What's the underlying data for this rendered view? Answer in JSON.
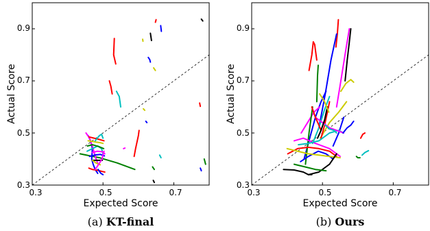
{
  "chart_data": [
    {
      "type": "line",
      "caption_prefix": "(a)",
      "caption_name": "KT-final",
      "xlabel": "Expected Score",
      "ylabel": "Actual Score",
      "xlim": [
        0.3,
        0.8
      ],
      "ylim": [
        0.3,
        1.0
      ],
      "xticks": [
        "0.3",
        "0.5",
        "0.7"
      ],
      "yticks": [
        "0.3",
        "0.5",
        "0.7",
        "0.9"
      ],
      "reference_line": "y = x (dashed)",
      "series": [
        {
          "color": "#ff0000",
          "x": [
            0.532,
            0.53,
            0.536
          ],
          "y": [
            0.863,
            0.8,
            0.765
          ]
        },
        {
          "color": "#000000",
          "x": [
            0.634,
            0.637
          ],
          "y": [
            0.883,
            0.855
          ]
        },
        {
          "color": "#ff0000",
          "x": [
            0.65,
            0.648
          ],
          "y": [
            0.935,
            0.925
          ]
        },
        {
          "color": "#0000ff",
          "x": [
            0.663,
            0.665
          ],
          "y": [
            0.912,
            0.89
          ]
        },
        {
          "color": "#000000",
          "x": [
            0.778,
            0.782
          ],
          "y": [
            0.937,
            0.93
          ]
        },
        {
          "color": "#cccc00",
          "x": [
            0.612,
            0.613
          ],
          "y": [
            0.86,
            0.852
          ]
        },
        {
          "color": "#0000ff",
          "x": [
            0.628,
            0.632,
            0.634
          ],
          "y": [
            0.79,
            0.782,
            0.772
          ]
        },
        {
          "color": "#cccc00",
          "x": [
            0.643,
            0.648
          ],
          "y": [
            0.75,
            0.74
          ]
        },
        {
          "color": "#00bfbf",
          "x": [
            0.538,
            0.546,
            0.55
          ],
          "y": [
            0.66,
            0.64,
            0.6
          ]
        },
        {
          "color": "#ff0000",
          "x": [
            0.518,
            0.522,
            0.526
          ],
          "y": [
            0.7,
            0.68,
            0.65
          ]
        },
        {
          "color": "#cccc00",
          "x": [
            0.614,
            0.618
          ],
          "y": [
            0.593,
            0.587
          ]
        },
        {
          "color": "#0000ff",
          "x": [
            0.621,
            0.624
          ],
          "y": [
            0.545,
            0.54
          ]
        },
        {
          "color": "#ff0000",
          "x": [
            0.588,
            0.592,
            0.6,
            0.602
          ],
          "y": [
            0.41,
            0.44,
            0.49,
            0.51
          ]
        },
        {
          "color": "#ff00ff",
          "x": [
            0.558,
            0.562
          ],
          "y": [
            0.44,
            0.442
          ]
        },
        {
          "color": "#00bfbf",
          "x": [
            0.66,
            0.664
          ],
          "y": [
            0.415,
            0.405
          ]
        },
        {
          "color": "#008000",
          "x": [
            0.64,
            0.645
          ],
          "y": [
            0.37,
            0.36
          ]
        },
        {
          "color": "#000000",
          "x": [
            0.642,
            0.645
          ],
          "y": [
            0.318,
            0.31
          ]
        },
        {
          "color": "#ff0000",
          "x": [
            0.773,
            0.775
          ],
          "y": [
            0.615,
            0.602
          ]
        },
        {
          "color": "#0000ff",
          "x": [
            0.775,
            0.778
          ],
          "y": [
            0.365,
            0.355
          ]
        },
        {
          "color": "#008000",
          "x": [
            0.786,
            0.79
          ],
          "y": [
            0.4,
            0.38
          ]
        },
        {
          "color": "#008000",
          "x": [
            0.435,
            0.49,
            0.54,
            0.59
          ],
          "y": [
            0.42,
            0.405,
            0.385,
            0.36
          ]
        },
        {
          "color": "#0000ff",
          "x": [
            0.458,
            0.465,
            0.47,
            0.468,
            0.472,
            0.478,
            0.485
          ],
          "y": [
            0.49,
            0.47,
            0.44,
            0.4,
            0.38,
            0.36,
            0.345
          ]
        },
        {
          "color": "#ff0000",
          "x": [
            0.46,
            0.47,
            0.48,
            0.49,
            0.498,
            0.505
          ],
          "y": [
            0.365,
            0.36,
            0.358,
            0.355,
            0.352,
            0.35
          ]
        },
        {
          "color": "#ff00ff",
          "x": [
            0.452,
            0.462,
            0.47,
            0.478,
            0.486
          ],
          "y": [
            0.5,
            0.48,
            0.45,
            0.41,
            0.38
          ]
        },
        {
          "color": "#00bfbf",
          "x": [
            0.455,
            0.47,
            0.485,
            0.496,
            0.5
          ],
          "y": [
            0.43,
            0.44,
            0.45,
            0.44,
            0.42
          ]
        },
        {
          "color": "#cccc00",
          "x": [
            0.458,
            0.468,
            0.48,
            0.492,
            0.5
          ],
          "y": [
            0.47,
            0.468,
            0.465,
            0.463,
            0.46
          ]
        },
        {
          "color": "#008000",
          "x": [
            0.456,
            0.47,
            0.488,
            0.502
          ],
          "y": [
            0.45,
            0.455,
            0.448,
            0.44
          ]
        },
        {
          "color": "#ff0000",
          "x": [
            0.46,
            0.475,
            0.49,
            0.503
          ],
          "y": [
            0.485,
            0.48,
            0.475,
            0.47
          ]
        },
        {
          "color": "#0000ff",
          "x": [
            0.462,
            0.476,
            0.492,
            0.504
          ],
          "y": [
            0.41,
            0.415,
            0.418,
            0.412
          ]
        },
        {
          "color": "#ff00ff",
          "x": [
            0.47,
            0.484,
            0.498,
            0.505
          ],
          "y": [
            0.425,
            0.43,
            0.428,
            0.42
          ]
        },
        {
          "color": "#000000",
          "x": [
            0.47,
            0.484,
            0.498
          ],
          "y": [
            0.395,
            0.395,
            0.395
          ]
        },
        {
          "color": "#00bfbf",
          "x": [
            0.478,
            0.49,
            0.496,
            0.5
          ],
          "y": [
            0.47,
            0.49,
            0.495,
            0.48
          ]
        },
        {
          "color": "#cccc00",
          "x": [
            0.47,
            0.48,
            0.492
          ],
          "y": [
            0.395,
            0.385,
            0.378
          ]
        },
        {
          "color": "#ff00ff",
          "x": [
            0.478,
            0.488,
            0.497,
            0.503
          ],
          "y": [
            0.36,
            0.38,
            0.4,
            0.43
          ]
        },
        {
          "color": "#0000ff",
          "x": [
            0.486,
            0.494,
            0.5
          ],
          "y": [
            0.36,
            0.345,
            0.34
          ]
        }
      ]
    },
    {
      "type": "line",
      "caption_prefix": "(b)",
      "caption_name": "Ours",
      "xlabel": "Expected Score",
      "ylabel": "Actual Score",
      "xlim": [
        0.3,
        0.8
      ],
      "ylim": [
        0.3,
        1.0
      ],
      "xticks": [
        "0.3",
        "0.5",
        "0.7"
      ],
      "yticks": [
        "0.3",
        "0.5",
        "0.7",
        "0.9"
      ],
      "reference_line": "y = x (dashed)",
      "series": [
        {
          "color": "#ff0000",
          "x": [
            0.462,
            0.47,
            0.474,
            0.478,
            0.484
          ],
          "y": [
            0.74,
            0.8,
            0.85,
            0.84,
            0.78
          ]
        },
        {
          "color": "#ff0000",
          "x": [
            0.538,
            0.542,
            0.545
          ],
          "y": [
            0.83,
            0.88,
            0.935
          ]
        },
        {
          "color": "#000000",
          "x": [
            0.564,
            0.57,
            0.576,
            0.58
          ],
          "y": [
            0.7,
            0.78,
            0.85,
            0.9
          ]
        },
        {
          "color": "#ff00ff",
          "x": [
            0.54,
            0.552,
            0.566,
            0.576
          ],
          "y": [
            0.6,
            0.7,
            0.82,
            0.9
          ]
        },
        {
          "color": "#0000ff",
          "x": [
            0.49,
            0.508,
            0.524,
            0.54
          ],
          "y": [
            0.52,
            0.65,
            0.78,
            0.88
          ]
        },
        {
          "color": "#008000",
          "x": [
            0.484,
            0.486,
            0.488
          ],
          "y": [
            0.62,
            0.72,
            0.76
          ]
        },
        {
          "color": "#cccc00",
          "x": [
            0.552,
            0.566,
            0.58,
            0.588
          ],
          "y": [
            0.66,
            0.69,
            0.705,
            0.695
          ]
        },
        {
          "color": "#0000ff",
          "x": [
            0.448,
            0.464,
            0.48,
            0.496,
            0.51
          ],
          "y": [
            0.4,
            0.48,
            0.56,
            0.62,
            0.66
          ]
        },
        {
          "color": "#00bfbf",
          "x": [
            0.472,
            0.49,
            0.506,
            0.52
          ],
          "y": [
            0.46,
            0.52,
            0.59,
            0.64
          ]
        },
        {
          "color": "#ff00ff",
          "x": [
            0.44,
            0.458,
            0.476,
            0.492
          ],
          "y": [
            0.5,
            0.54,
            0.58,
            0.6
          ]
        },
        {
          "color": "#008000",
          "x": [
            0.452,
            0.462,
            0.472
          ],
          "y": [
            0.38,
            0.5,
            0.6
          ]
        },
        {
          "color": "#cccc00",
          "x": [
            0.494,
            0.52,
            0.546,
            0.568
          ],
          "y": [
            0.48,
            0.54,
            0.58,
            0.62
          ]
        },
        {
          "color": "#ff0000",
          "x": [
            0.496,
            0.506,
            0.514,
            0.52
          ],
          "y": [
            0.48,
            0.53,
            0.58,
            0.62
          ]
        },
        {
          "color": "#0000ff",
          "x": [
            0.53,
            0.546,
            0.56
          ],
          "y": [
            0.45,
            0.5,
            0.56
          ]
        },
        {
          "color": "#ff0000",
          "x": [
            0.402,
            0.43,
            0.46,
            0.49,
            0.52,
            0.54
          ],
          "y": [
            0.42,
            0.44,
            0.445,
            0.44,
            0.43,
            0.41
          ]
        },
        {
          "color": "#ff00ff",
          "x": [
            0.42,
            0.446,
            0.48,
            0.52,
            0.55
          ],
          "y": [
            0.47,
            0.48,
            0.46,
            0.44,
            0.41
          ]
        },
        {
          "color": "#00bfbf",
          "x": [
            0.432,
            0.46,
            0.49,
            0.52,
            0.546,
            0.56
          ],
          "y": [
            0.455,
            0.46,
            0.47,
            0.5,
            0.51,
            0.5
          ]
        },
        {
          "color": "#0000ff",
          "x": [
            0.438,
            0.46,
            0.488,
            0.51,
            0.53
          ],
          "y": [
            0.39,
            0.41,
            0.43,
            0.42,
            0.4
          ]
        },
        {
          "color": "#cccc00",
          "x": [
            0.4,
            0.43,
            0.46,
            0.49,
            0.52,
            0.55
          ],
          "y": [
            0.44,
            0.43,
            0.42,
            0.415,
            0.41,
            0.405
          ]
        },
        {
          "color": "#000000",
          "x": [
            0.39,
            0.42,
            0.446,
            0.46,
            0.47
          ],
          "y": [
            0.36,
            0.358,
            0.35,
            0.34,
            0.34
          ]
        },
        {
          "color": "#000000",
          "x": [
            0.46,
            0.49,
            0.52,
            0.54
          ],
          "y": [
            0.34,
            0.35,
            0.38,
            0.42
          ]
        },
        {
          "color": "#008000",
          "x": [
            0.42,
            0.45,
            0.48,
            0.51
          ],
          "y": [
            0.38,
            0.37,
            0.36,
            0.355
          ]
        },
        {
          "color": "#ff00ff",
          "x": [
            0.48,
            0.5,
            0.52,
            0.54,
            0.56
          ],
          "y": [
            0.56,
            0.54,
            0.52,
            0.51,
            0.5
          ]
        },
        {
          "color": "#ff0000",
          "x": [
            0.47,
            0.48,
            0.49,
            0.496
          ],
          "y": [
            0.6,
            0.56,
            0.53,
            0.51
          ]
        },
        {
          "color": "#000000",
          "x": [
            0.486,
            0.496,
            0.506,
            0.514
          ],
          "y": [
            0.48,
            0.51,
            0.55,
            0.6
          ]
        },
        {
          "color": "#0000ff",
          "x": [
            0.558,
            0.57,
            0.58,
            0.588
          ],
          "y": [
            0.5,
            0.52,
            0.53,
            0.545
          ]
        },
        {
          "color": "#ff0000",
          "x": [
            0.608,
            0.614,
            0.62
          ],
          "y": [
            0.48,
            0.495,
            0.5
          ]
        },
        {
          "color": "#00bfbf",
          "x": [
            0.612,
            0.62,
            0.63
          ],
          "y": [
            0.415,
            0.425,
            0.432
          ]
        },
        {
          "color": "#008000",
          "x": [
            0.596,
            0.6,
            0.606
          ],
          "y": [
            0.41,
            0.405,
            0.405
          ]
        },
        {
          "color": "#00bfbf",
          "x": [
            0.508,
            0.52,
            0.532,
            0.54
          ],
          "y": [
            0.53,
            0.515,
            0.51,
            0.5
          ]
        },
        {
          "color": "#cccc00",
          "x": [
            0.492,
            0.506,
            0.518
          ],
          "y": [
            0.65,
            0.62,
            0.58
          ]
        }
      ]
    }
  ]
}
